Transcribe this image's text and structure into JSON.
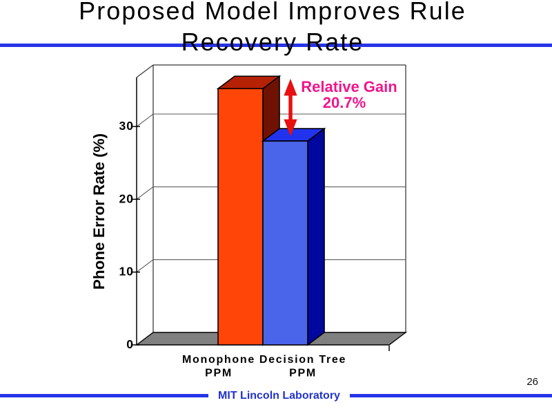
{
  "slide": {
    "title_line1": "Proposed Model Improves Rule",
    "title_line2": "Recovery Rate",
    "page_number": "26",
    "footer_text": "MIT Lincoln Laboratory"
  },
  "chart_data": {
    "type": "bar",
    "style": "3d",
    "categories": [
      [
        "Monophone",
        "PPM"
      ],
      [
        "Decision Tree",
        "PPM"
      ]
    ],
    "values": [
      35.2,
      28.0
    ],
    "ylabel": "Phone Error Rate (%)",
    "yticks": [
      0,
      10,
      20,
      30
    ],
    "ylim": [
      0,
      36.7
    ],
    "annotation": {
      "line1": "Relative Gain",
      "line2": "20.7%"
    },
    "colors": {
      "bar_faces": [
        {
          "front": "#FF4508",
          "top": "#B42104",
          "side": "#701203"
        },
        {
          "front": "#4A64EA",
          "top": "#2233EE",
          "side": "#0008A0"
        }
      ],
      "floor": "#808080",
      "arrow": "#E81010",
      "annotation_text": "#F0148C"
    }
  }
}
